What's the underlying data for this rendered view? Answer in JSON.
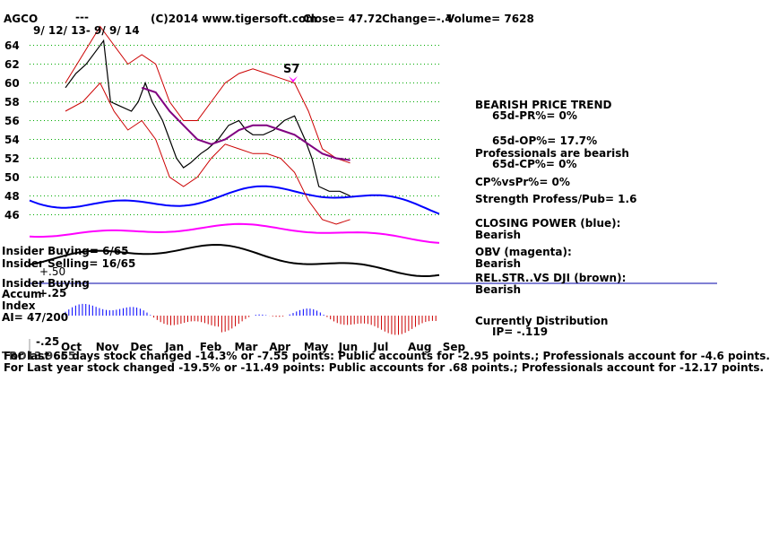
{
  "header": {
    "ticker": "AGCO",
    "dashes": "---",
    "copyright": "(C)2014 www.tigersoft.com",
    "close": "Close=  47.72",
    "change": "Change=-.4",
    "volume": "Volume= 7628",
    "date_range": "9/ 12/ 13-  9/ 9/ 14"
  },
  "signal_label": "S7",
  "left_notes": {
    "insider_buying": "Insider Buying= 6/65",
    "insider_selling": "Insider Selling= 16/65",
    "plus50": "+.50",
    "insider_buying_short": "Insider Buying",
    "accum_label": "Accum",
    "accum_plus": "+.25",
    "index_label": "Index",
    "ai": "AI= 47/200",
    "minus25": "-.25",
    "overlap": "TRO13.9665"
  },
  "right_panel": [
    {
      "key": "bearish_trend",
      "text": "BEARISH PRICE TREND"
    },
    {
      "key": "pr65",
      "text": "65d-PR%= 0%"
    },
    {
      "key": "op65",
      "text": "65d-OP%= 17.7%"
    },
    {
      "key": "prof_bearish",
      "text": "Professionals are bearish"
    },
    {
      "key": "cp65",
      "text": "65d-CP%= 0%"
    },
    {
      "key": "cpvspr",
      "text": "CP%vsPr%=  0%"
    },
    {
      "key": "strength",
      "text": "Strength Profess/Pub= 1.6"
    },
    {
      "key": "closing_power",
      "text": "CLOSING POWER (blue):"
    },
    {
      "key": "cp_bearish",
      "text": "Bearish"
    },
    {
      "key": "obv",
      "text": "OBV (magenta):"
    },
    {
      "key": "obv_bearish",
      "text": "Bearish"
    },
    {
      "key": "relstr",
      "text": "REL.STR..VS DJI (brown):"
    },
    {
      "key": "relstr_bearish",
      "text": "Bearish"
    },
    {
      "key": "distribution",
      "text": "Currently Distribution"
    },
    {
      "key": "ip",
      "text": "IP= -.119"
    }
  ],
  "footer": {
    "line1": "For last 65 days stock changed -14.3% or -7.55 points:  Public accounts for -2.95 points.;  Professionals account for -4.6 points.",
    "line2": "For Last year stock changed -19.5% or -11.49 points:  Public accounts for  .68 points.;  Professionals account for -12.17 points."
  },
  "colors": {
    "price": "#000000",
    "bands": "#cc0000",
    "ma": "#800080",
    "closing_power": "#0000ff",
    "obv": "#ff00ff",
    "relstr": "#000000",
    "grid": "#00aa00",
    "accum_pos": "#0000ff",
    "accum_neg": "#cc0000",
    "insider_line": "#0000aa"
  },
  "chart_data": {
    "type": "line",
    "title": "AGCO",
    "xlabel": "",
    "ylabel": "",
    "x_ticks": [
      "Oct",
      "Nov",
      "Dec",
      "Jan",
      "Feb",
      "Mar",
      "Apr",
      "May",
      "Jun",
      "Jul",
      "Aug",
      "Sep"
    ],
    "y_ticks": [
      46,
      48,
      50,
      52,
      54,
      56,
      58,
      60,
      62,
      64
    ],
    "ylim": [
      45,
      65
    ],
    "grid": true,
    "series": [
      {
        "key": "price",
        "points": [
          [
            0,
            59.5
          ],
          [
            0.3,
            61
          ],
          [
            0.6,
            62
          ],
          [
            0.9,
            63.5
          ],
          [
            1.1,
            64.5
          ],
          [
            1.3,
            58
          ],
          [
            1.6,
            57.5
          ],
          [
            1.9,
            57
          ],
          [
            2.1,
            58
          ],
          [
            2.3,
            60
          ],
          [
            2.5,
            58
          ],
          [
            2.8,
            56
          ],
          [
            3.0,
            54
          ],
          [
            3.2,
            52
          ],
          [
            3.4,
            51
          ],
          [
            3.6,
            51.5
          ],
          [
            3.9,
            52.5
          ],
          [
            4.1,
            53
          ],
          [
            4.4,
            54
          ],
          [
            4.7,
            55.5
          ],
          [
            5.0,
            56
          ],
          [
            5.2,
            55
          ],
          [
            5.4,
            54.5
          ],
          [
            5.7,
            54.5
          ],
          [
            6.0,
            55
          ],
          [
            6.3,
            56
          ],
          [
            6.6,
            56.5
          ],
          [
            6.9,
            54
          ],
          [
            7.1,
            52
          ],
          [
            7.3,
            49
          ],
          [
            7.6,
            48.5
          ],
          [
            7.9,
            48.5
          ],
          [
            8.2,
            48
          ]
        ]
      },
      {
        "key": "upper_band",
        "points": [
          [
            0,
            60
          ],
          [
            0.5,
            63
          ],
          [
            1.0,
            66
          ],
          [
            1.4,
            64
          ],
          [
            1.8,
            62
          ],
          [
            2.2,
            63
          ],
          [
            2.6,
            62
          ],
          [
            3.0,
            58
          ],
          [
            3.4,
            56
          ],
          [
            3.8,
            56
          ],
          [
            4.2,
            58
          ],
          [
            4.6,
            60
          ],
          [
            5.0,
            61
          ],
          [
            5.4,
            61.5
          ],
          [
            5.8,
            61
          ],
          [
            6.2,
            60.5
          ],
          [
            6.6,
            60
          ],
          [
            7.0,
            57
          ],
          [
            7.4,
            53
          ],
          [
            7.8,
            52
          ],
          [
            8.2,
            51.5
          ]
        ]
      },
      {
        "key": "lower_band",
        "points": [
          [
            0,
            57
          ],
          [
            0.5,
            58
          ],
          [
            1.0,
            60
          ],
          [
            1.4,
            57
          ],
          [
            1.8,
            55
          ],
          [
            2.2,
            56
          ],
          [
            2.6,
            54
          ],
          [
            3.0,
            50
          ],
          [
            3.4,
            49
          ],
          [
            3.8,
            50
          ],
          [
            4.2,
            52
          ],
          [
            4.6,
            53.5
          ],
          [
            5.0,
            53
          ],
          [
            5.4,
            52.5
          ],
          [
            5.8,
            52.5
          ],
          [
            6.2,
            52
          ],
          [
            6.6,
            50.5
          ],
          [
            7.0,
            47.5
          ],
          [
            7.4,
            45.5
          ],
          [
            7.8,
            45
          ],
          [
            8.2,
            45.5
          ]
        ]
      },
      {
        "key": "moving_average",
        "points": [
          [
            2.2,
            59.5
          ],
          [
            2.6,
            59
          ],
          [
            3.0,
            57
          ],
          [
            3.4,
            55.5
          ],
          [
            3.8,
            54
          ],
          [
            4.2,
            53.5
          ],
          [
            4.6,
            54
          ],
          [
            5.0,
            55
          ],
          [
            5.4,
            55.5
          ],
          [
            5.8,
            55.5
          ],
          [
            6.2,
            55
          ],
          [
            6.6,
            54.5
          ],
          [
            7.0,
            53.5
          ],
          [
            7.4,
            52.5
          ],
          [
            7.8,
            52
          ],
          [
            8.2,
            51.8
          ]
        ]
      }
    ]
  }
}
